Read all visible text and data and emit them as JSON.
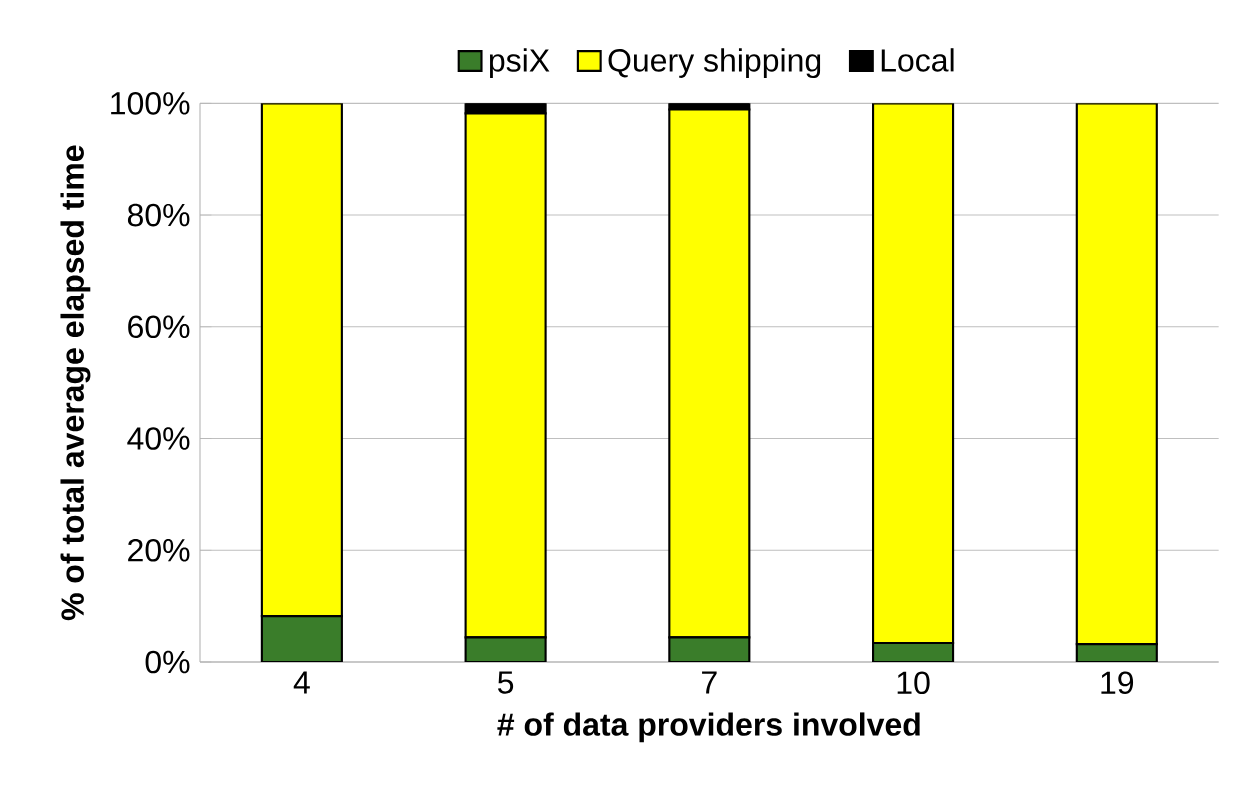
{
  "chart_data": {
    "type": "bar",
    "stacked": true,
    "xlabel": "# of data providers involved",
    "ylabel": "% of total average elapsed time",
    "categories": [
      "4",
      "5",
      "7",
      "10",
      "19"
    ],
    "series": [
      {
        "name": "psiX",
        "color": "#3a7d2a",
        "values": [
          8.2,
          4.4,
          4.4,
          3.4,
          3.2
        ]
      },
      {
        "name": "Query shipping",
        "color": "#ffff00",
        "values": [
          91.8,
          93.8,
          94.5,
          96.6,
          96.8
        ]
      },
      {
        "name": "Local",
        "color": "#000000",
        "values": [
          0,
          1.8,
          1.1,
          0,
          0
        ]
      }
    ],
    "ylim": [
      0,
      100
    ],
    "yticks": [
      {
        "value": 0,
        "label": "0%"
      },
      {
        "value": 20,
        "label": "20%"
      },
      {
        "value": 40,
        "label": "40%"
      },
      {
        "value": 60,
        "label": "60%"
      },
      {
        "value": 80,
        "label": "80%"
      },
      {
        "value": 100,
        "label": "100%"
      }
    ],
    "grid": "y",
    "legend": "top"
  }
}
